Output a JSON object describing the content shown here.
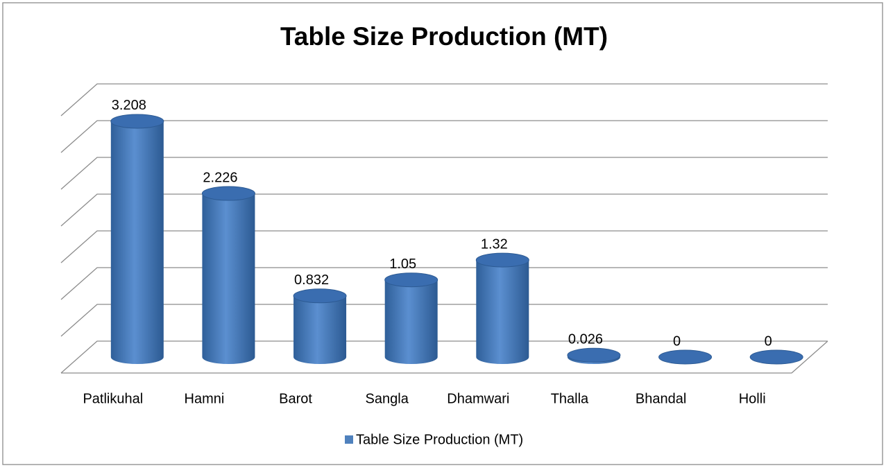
{
  "chart_data": {
    "type": "bar3d",
    "title": "Table Size Production (MT)",
    "categories": [
      "Patlikuhal",
      "Hamni",
      "Barot",
      "Sangla",
      "Dhamwari",
      "Thalla",
      "Bhandal",
      "Holli"
    ],
    "series": [
      {
        "name": "Table Size Production (MT)",
        "color": "#4f81bd",
        "values": [
          3.208,
          2.226,
          0.832,
          1.05,
          1.32,
          0.026,
          0,
          0
        ]
      }
    ],
    "ylim": [
      0,
      3.5
    ],
    "yticks": [
      0,
      0.5,
      1,
      1.5,
      2,
      2.5,
      3,
      3.5
    ],
    "grid": true,
    "legend": "bottom"
  }
}
